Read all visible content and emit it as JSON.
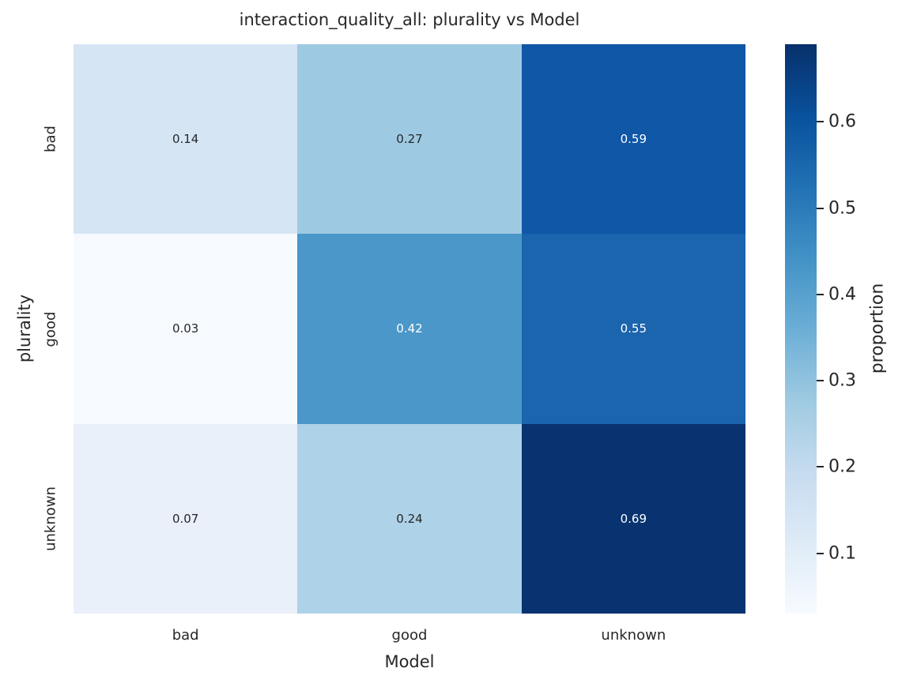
{
  "title": "interaction_quality_all: plurality vs Model",
  "colors": {
    "text": "#262626",
    "annot_dark_text": "#262626",
    "annot_light_text": "#ffffff",
    "colormap_stops": [
      "#f7fbff",
      "#deebf7",
      "#c6dbef",
      "#9ecae1",
      "#6baed6",
      "#4292c6",
      "#2171b5",
      "#08519c",
      "#08306b"
    ]
  },
  "chart_data": {
    "type": "heatmap",
    "title": "interaction_quality_all: plurality vs Model",
    "xlabel": "Model",
    "ylabel": "plurality",
    "x_categories": [
      "bad",
      "good",
      "unknown"
    ],
    "y_categories": [
      "bad",
      "good",
      "unknown"
    ],
    "values": [
      [
        0.14,
        0.27,
        0.59
      ],
      [
        0.03,
        0.42,
        0.55
      ],
      [
        0.07,
        0.24,
        0.69
      ]
    ],
    "cell_colors": [
      [
        "#d5e5f4",
        "#9ec9e2",
        "#1057a7"
      ],
      [
        "#f6fafe",
        "#4b97c9",
        "#1b64ae"
      ],
      [
        "#e9f0fa",
        "#aed2e8",
        "#083370"
      ]
    ],
    "cell_text_styles": [
      [
        "dark",
        "dark",
        "light"
      ],
      [
        "dark",
        "light",
        "light"
      ],
      [
        "dark",
        "dark",
        "light"
      ]
    ],
    "colorbar": {
      "label": "proportion",
      "ticks": [
        0.1,
        0.2,
        0.3,
        0.4,
        0.5,
        0.6
      ],
      "vmin": 0.03,
      "vmax": 0.69
    },
    "layout": {
      "grid": true,
      "legend": "colorbar-right"
    }
  }
}
